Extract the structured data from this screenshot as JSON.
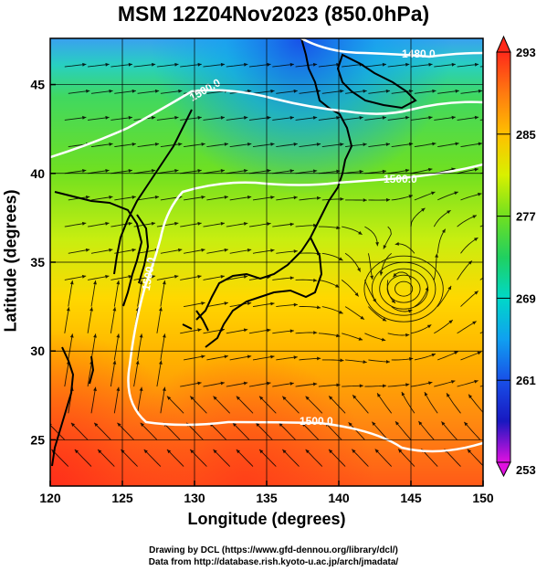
{
  "title": "MSM 12Z04Nov2023 (850.0hPa)",
  "xlabel": "Longitude (degrees)",
  "ylabel": "Latitude  (degrees)",
  "credits": [
    "Drawing by DCL (https://www.gfd-dennou.org/library/dcl/)",
    "Data from http://database.rish.kyoto-u.ac.jp/arch/jmadata/"
  ],
  "colorbar": {
    "ticks": [
      "293",
      "285",
      "277",
      "269",
      "261",
      "253"
    ],
    "colors": [
      "#ff2a1a",
      "#ff7a10",
      "#ffc000",
      "#d8f000",
      "#70e020",
      "#20d060",
      "#00d8c8",
      "#10a0f0",
      "#1850e8",
      "#1818c0",
      "#9020c8",
      "#e010e0"
    ]
  },
  "chart_data": {
    "type": "heatmap",
    "title": "MSM 12Z04Nov2023 (850.0hPa)",
    "xlabel": "Longitude (degrees)",
    "ylabel": "Latitude  (degrees)",
    "xlim": [
      120,
      150
    ],
    "ylim": [
      22.4,
      47.6
    ],
    "xticks": [
      "120",
      "125",
      "130",
      "135",
      "140",
      "145",
      "150"
    ],
    "yticks": [
      "25",
      "30",
      "35",
      "40",
      "45"
    ],
    "color_range": [
      253,
      293
    ],
    "color_ticks": [
      293,
      285,
      277,
      269,
      261,
      253
    ],
    "contour_labels": [
      "1480.0",
      "1500.0",
      "1500.0",
      "1500.0",
      "1500.0"
    ],
    "field": "temperature (K) shaded, geopotential height contours, wind streamlines",
    "cyclone_center": [
      144.5,
      33.5
    ]
  }
}
